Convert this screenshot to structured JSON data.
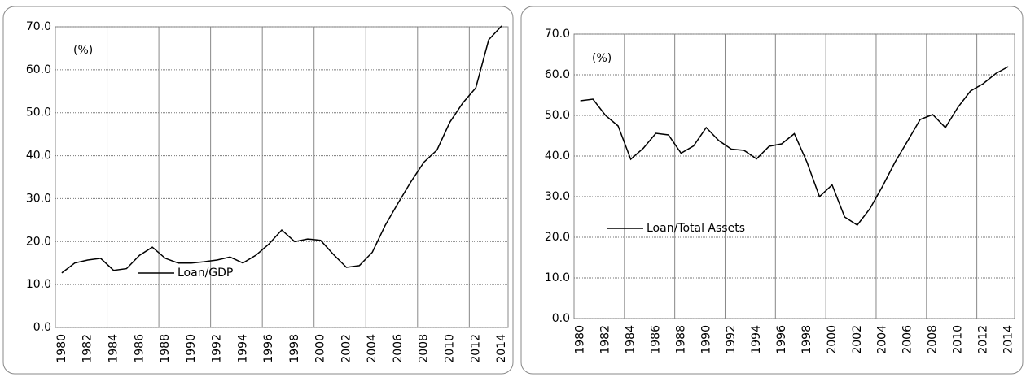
{
  "chart_data": [
    {
      "type": "line",
      "annotation": "(%)",
      "categories": [
        "1980",
        null,
        "1982",
        null,
        "1984",
        null,
        "1986",
        null,
        "1988",
        null,
        "1990",
        null,
        "1992",
        null,
        "1994",
        null,
        "1996",
        null,
        "1998",
        null,
        "2000",
        null,
        "2002",
        null,
        "2004",
        null,
        "2006",
        null,
        "2008",
        null,
        "2010",
        null,
        "2012",
        null,
        "2014"
      ],
      "series": [
        {
          "name": "Loan/GDP",
          "color": "#000000",
          "values": [
            12.7,
            15.0,
            15.7,
            16.1,
            13.3,
            13.7,
            16.8,
            18.7,
            16.1,
            15.0,
            15.0,
            15.3,
            15.7,
            16.4,
            15.0,
            16.8,
            19.4,
            22.7,
            20.0,
            20.6,
            20.3,
            17.0,
            14.0,
            14.4,
            17.5,
            23.8,
            29.0,
            34.0,
            38.5,
            41.3,
            47.8,
            52.3,
            55.8,
            67.0,
            70.2
          ]
        }
      ],
      "ylim": [
        0,
        70
      ],
      "yticks": [
        {
          "value": 0,
          "label": "0.0"
        },
        {
          "value": 10,
          "label": "10.0"
        },
        {
          "value": 20,
          "label": "20.0"
        },
        {
          "value": 30,
          "label": "30.0"
        },
        {
          "value": 40,
          "label": "40.0"
        },
        {
          "value": 50,
          "label": "50.0"
        },
        {
          "value": 60,
          "label": "60.0"
        },
        {
          "value": 70,
          "label": "70.0"
        }
      ],
      "grid": true
    },
    {
      "type": "line",
      "annotation": "(%)",
      "categories": [
        "1980",
        null,
        "1982",
        null,
        "1984",
        null,
        "1986",
        null,
        "1988",
        null,
        "1990",
        null,
        "1992",
        null,
        "1994",
        null,
        "1996",
        null,
        "1998",
        null,
        "2000",
        null,
        "2002",
        null,
        "2004",
        null,
        "2006",
        null,
        "2008",
        null,
        "2010",
        null,
        "2012",
        null,
        "2014"
      ],
      "series": [
        {
          "name": "Loan/Total Assets",
          "color": "#000000",
          "values": [
            53.6,
            54.0,
            50.0,
            47.4,
            39.2,
            41.9,
            45.6,
            45.2,
            40.7,
            42.5,
            47.0,
            43.8,
            41.7,
            41.4,
            39.3,
            42.4,
            43.0,
            45.5,
            38.5,
            30.0,
            32.9,
            25.0,
            23.0,
            27.0,
            32.5,
            38.5,
            43.7,
            49.0,
            50.2,
            47.0,
            52.0,
            56.0,
            57.8,
            60.3,
            62.0
          ]
        }
      ],
      "ylim": [
        0,
        70
      ],
      "yticks": [
        {
          "value": 0,
          "label": "0.0"
        },
        {
          "value": 10,
          "label": "10.0"
        },
        {
          "value": 20,
          "label": "20.0"
        },
        {
          "value": 30,
          "label": "30.0"
        },
        {
          "value": 40,
          "label": "40.0"
        },
        {
          "value": 50,
          "label": "50.0"
        },
        {
          "value": 60,
          "label": "60.0"
        },
        {
          "value": 70,
          "label": "70.0"
        }
      ],
      "grid": true
    }
  ]
}
